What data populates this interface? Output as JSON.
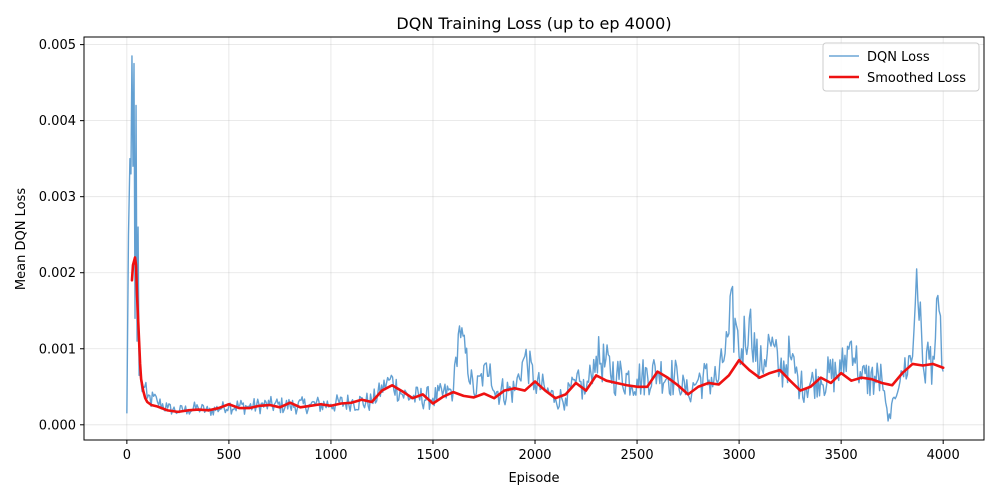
{
  "chart_data": {
    "type": "line",
    "title": "DQN Training Loss (up to ep 4000)",
    "xlabel": "Episode",
    "ylabel": "Mean DQN Loss",
    "xlim": [
      -210,
      4200
    ],
    "ylim": [
      -0.0002,
      0.0051
    ],
    "xticks": [
      0,
      500,
      1000,
      1500,
      2000,
      2500,
      3000,
      3500,
      4000
    ],
    "yticks": [
      0.0,
      0.001,
      0.002,
      0.003,
      0.004,
      0.005
    ],
    "xtick_labels": [
      "0",
      "500",
      "1000",
      "1500",
      "2000",
      "2500",
      "3000",
      "3500",
      "4000"
    ],
    "ytick_labels": [
      "0.000",
      "0.001",
      "0.002",
      "0.003",
      "0.004",
      "0.005"
    ],
    "grid": true,
    "legend_position": "top-right",
    "series": [
      {
        "name": "DQN Loss",
        "color": "#5b9bd0",
        "style": "thin-noisy",
        "x": [
          0,
          8,
          15,
          20,
          25,
          30,
          35,
          40,
          45,
          50,
          55,
          60,
          70,
          80,
          100,
          150,
          200,
          250,
          300,
          350,
          400,
          500,
          600,
          700,
          800,
          900,
          1000,
          1100,
          1200,
          1290,
          1350,
          1400,
          1500,
          1600,
          1630,
          1700,
          1780,
          1800,
          1900,
          1950,
          2000,
          2050,
          2100,
          2150,
          2200,
          2250,
          2300,
          2400,
          2500,
          2600,
          2700,
          2750,
          2800,
          2900,
          2950,
          2980,
          3000,
          3050,
          3100,
          3150,
          3200,
          3250,
          3300,
          3400,
          3500,
          3550,
          3600,
          3700,
          3730,
          3800,
          3850,
          3870,
          3900,
          3950,
          3980,
          4000
        ],
        "y": [
          0.00015,
          0.0025,
          0.0035,
          0.0033,
          0.00485,
          0.0034,
          0.00475,
          0.0014,
          0.0042,
          0.0011,
          0.0026,
          0.00065,
          0.00055,
          0.0005,
          0.00035,
          0.0003,
          0.00022,
          0.00018,
          0.0002,
          0.00022,
          0.00018,
          0.00025,
          0.00024,
          0.00026,
          0.00025,
          0.00026,
          0.00027,
          0.0003,
          0.0003,
          0.0006,
          0.0004,
          0.00036,
          0.00035,
          0.00045,
          0.0013,
          0.00042,
          0.0008,
          0.00044,
          0.00045,
          0.0009,
          0.00055,
          0.00045,
          0.00035,
          0.00035,
          0.00055,
          0.00045,
          0.0009,
          0.00065,
          0.0006,
          0.0007,
          0.0006,
          0.0004,
          0.0006,
          0.0006,
          0.0012,
          0.0014,
          0.0009,
          0.0014,
          0.0007,
          0.0011,
          0.0007,
          0.0009,
          0.0005,
          0.0006,
          0.0007,
          0.0011,
          0.0006,
          0.0006,
          5e-05,
          0.0007,
          0.0009,
          0.00205,
          0.0008,
          0.0009,
          0.0015,
          0.0007
        ]
      },
      {
        "name": "Smoothed Loss",
        "color": "#ee1111",
        "style": "thick-smooth",
        "x": [
          25,
          30,
          40,
          45,
          50,
          55,
          60,
          65,
          70,
          80,
          90,
          100,
          120,
          150,
          200,
          250,
          300,
          350,
          400,
          450,
          500,
          550,
          600,
          650,
          700,
          750,
          800,
          850,
          900,
          950,
          1000,
          1050,
          1100,
          1150,
          1200,
          1250,
          1300,
          1350,
          1400,
          1450,
          1500,
          1550,
          1600,
          1650,
          1700,
          1750,
          1800,
          1850,
          1900,
          1950,
          2000,
          2050,
          2100,
          2150,
          2200,
          2250,
          2300,
          2350,
          2400,
          2450,
          2500,
          2550,
          2600,
          2650,
          2700,
          2750,
          2800,
          2850,
          2900,
          2950,
          3000,
          3050,
          3100,
          3150,
          3200,
          3250,
          3300,
          3350,
          3400,
          3450,
          3500,
          3550,
          3600,
          3650,
          3700,
          3750,
          3800,
          3850,
          3900,
          3950,
          4000
        ],
        "y": [
          0.0019,
          0.0021,
          0.0022,
          0.0021,
          0.0017,
          0.0014,
          0.0011,
          0.0008,
          0.0006,
          0.00045,
          0.00035,
          0.0003,
          0.00026,
          0.00024,
          0.00019,
          0.00017,
          0.00019,
          0.0002,
          0.00019,
          0.00022,
          0.00027,
          0.00022,
          0.00022,
          0.00025,
          0.00026,
          0.00023,
          0.00029,
          0.00023,
          0.00025,
          0.00027,
          0.00025,
          0.00028,
          0.00029,
          0.00033,
          0.0003,
          0.00045,
          0.00052,
          0.00044,
          0.00035,
          0.0004,
          0.00028,
          0.00037,
          0.00043,
          0.00038,
          0.00036,
          0.00041,
          0.00035,
          0.00045,
          0.00048,
          0.00045,
          0.00057,
          0.00045,
          0.00035,
          0.0004,
          0.00055,
          0.00045,
          0.00065,
          0.00058,
          0.00055,
          0.00052,
          0.0005,
          0.0005,
          0.0007,
          0.00062,
          0.00052,
          0.0004,
          0.0005,
          0.00055,
          0.00053,
          0.00065,
          0.00085,
          0.00072,
          0.00062,
          0.00068,
          0.00072,
          0.00058,
          0.00045,
          0.0005,
          0.00062,
          0.00055,
          0.00068,
          0.00058,
          0.00062,
          0.0006,
          0.00055,
          0.00052,
          0.00068,
          0.0008,
          0.00078,
          0.0008,
          0.00075
        ]
      }
    ]
  }
}
